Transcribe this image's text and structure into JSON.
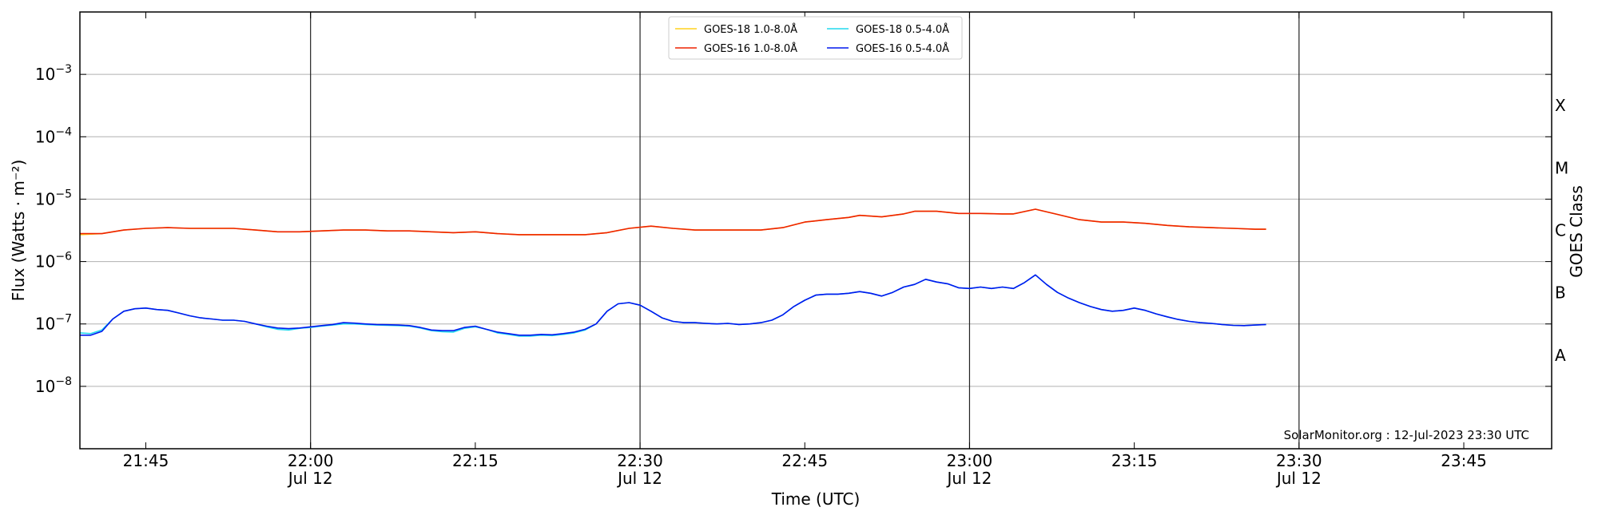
{
  "chart_data": {
    "type": "line",
    "xlabel": "Time (UTC)",
    "ylabel": "Flux (Watts · m⁻²)",
    "y2label": "GOES Class",
    "yscale": "log",
    "xlim": [
      "21:39",
      "23:53"
    ],
    "ylim": [
      1e-09,
      0.01
    ],
    "x_ticks": [
      {
        "time": "21:45",
        "label": "21:45",
        "date": ""
      },
      {
        "time": "22:00",
        "label": "22:00",
        "date": "Jul 12"
      },
      {
        "time": "22:15",
        "label": "22:15",
        "date": ""
      },
      {
        "time": "22:30",
        "label": "22:30",
        "date": "Jul 12"
      },
      {
        "time": "22:45",
        "label": "22:45",
        "date": ""
      },
      {
        "time": "23:00",
        "label": "23:00",
        "date": "Jul 12"
      },
      {
        "time": "23:15",
        "label": "23:15",
        "date": ""
      },
      {
        "time": "23:30",
        "label": "23:30",
        "date": "Jul 12"
      },
      {
        "time": "23:45",
        "label": "23:45",
        "date": ""
      }
    ],
    "y_ticks": [
      {
        "value": 1e-08,
        "base": "10",
        "exp": "−8"
      },
      {
        "value": 1e-07,
        "base": "10",
        "exp": "−7"
      },
      {
        "value": 1e-06,
        "base": "10",
        "exp": "−6"
      },
      {
        "value": 1e-05,
        "base": "10",
        "exp": "−5"
      },
      {
        "value": 0.0001,
        "base": "10",
        "exp": "−4"
      },
      {
        "value": 0.001,
        "base": "10",
        "exp": "−3"
      }
    ],
    "goes_classes": [
      {
        "label": "A",
        "value": 3.16e-08
      },
      {
        "label": "B",
        "value": 3.16e-07
      },
      {
        "label": "C",
        "value": 3.16e-06
      },
      {
        "label": "M",
        "value": 3.16e-05
      },
      {
        "label": "X",
        "value": 0.000316
      }
    ],
    "vertical_lines": [
      "22:00",
      "22:30",
      "23:00",
      "23:30"
    ],
    "grid": "horizontal",
    "legend_placement": "top-center",
    "credit": "SolarMonitor.org : 12-Jul-2023 23:30 UTC",
    "series": [
      {
        "name": "GOES-18 1.0-8.0Å",
        "color": "#ffd21f",
        "x": [
          "21:39",
          "21:41",
          "21:43",
          "21:45",
          "21:47",
          "21:49",
          "21:51",
          "21:53",
          "21:55",
          "21:57",
          "21:59",
          "22:01",
          "22:03",
          "22:05",
          "22:07",
          "22:09",
          "22:11",
          "22:13",
          "22:15",
          "22:17",
          "22:19",
          "22:21",
          "22:23",
          "22:25",
          "22:27",
          "22:29",
          "22:31",
          "22:33",
          "22:35",
          "22:37",
          "22:39",
          "22:41",
          "22:43",
          "22:45",
          "22:47",
          "22:49",
          "22:50",
          "22:52",
          "22:54",
          "22:55",
          "22:57",
          "22:59",
          "23:01",
          "23:03",
          "23:04",
          "23:06",
          "23:08",
          "23:10",
          "23:12",
          "23:14",
          "23:16",
          "23:18",
          "23:20",
          "23:22",
          "23:24",
          "23:26",
          "23:27"
        ],
        "values": [
          2.7e-06,
          2.8e-06,
          3.2e-06,
          3.4e-06,
          3.5e-06,
          3.4e-06,
          3.4e-06,
          3.4e-06,
          3.2e-06,
          3e-06,
          3e-06,
          3.1e-06,
          3.2e-06,
          3.2e-06,
          3.1e-06,
          3.1e-06,
          3e-06,
          2.9e-06,
          3e-06,
          2.8e-06,
          2.7e-06,
          2.7e-06,
          2.7e-06,
          2.7e-06,
          2.9e-06,
          3.4e-06,
          3.7e-06,
          3.4e-06,
          3.2e-06,
          3.2e-06,
          3.2e-06,
          3.2e-06,
          3.5e-06,
          4.3e-06,
          4.7e-06,
          5.1e-06,
          5.5e-06,
          5.2e-06,
          5.8e-06,
          6.4e-06,
          6.4e-06,
          5.9e-06,
          5.9e-06,
          5.8e-06,
          5.8e-06,
          6.9e-06,
          5.7e-06,
          4.7e-06,
          4.3e-06,
          4.3e-06,
          4.1e-06,
          3.8e-06,
          3.6e-06,
          3.5e-06,
          3.4e-06,
          3.3e-06,
          3.3e-06
        ]
      },
      {
        "name": "GOES-16 1.0-8.0Å",
        "color": "#ee2200",
        "x": [
          "21:39",
          "21:41",
          "21:43",
          "21:45",
          "21:47",
          "21:49",
          "21:51",
          "21:53",
          "21:55",
          "21:57",
          "21:59",
          "22:01",
          "22:03",
          "22:05",
          "22:07",
          "22:09",
          "22:11",
          "22:13",
          "22:15",
          "22:17",
          "22:19",
          "22:21",
          "22:23",
          "22:25",
          "22:27",
          "22:29",
          "22:31",
          "22:33",
          "22:35",
          "22:37",
          "22:39",
          "22:41",
          "22:43",
          "22:45",
          "22:47",
          "22:49",
          "22:50",
          "22:52",
          "22:54",
          "22:55",
          "22:57",
          "22:59",
          "23:01",
          "23:03",
          "23:04",
          "23:06",
          "23:08",
          "23:10",
          "23:12",
          "23:14",
          "23:16",
          "23:18",
          "23:20",
          "23:22",
          "23:24",
          "23:26",
          "23:27"
        ],
        "values": [
          2.8e-06,
          2.8e-06,
          3.2e-06,
          3.4e-06,
          3.5e-06,
          3.4e-06,
          3.4e-06,
          3.4e-06,
          3.2e-06,
          3e-06,
          3e-06,
          3.1e-06,
          3.2e-06,
          3.2e-06,
          3.1e-06,
          3.1e-06,
          3e-06,
          2.9e-06,
          3e-06,
          2.8e-06,
          2.7e-06,
          2.7e-06,
          2.7e-06,
          2.7e-06,
          2.9e-06,
          3.4e-06,
          3.7e-06,
          3.4e-06,
          3.2e-06,
          3.2e-06,
          3.2e-06,
          3.2e-06,
          3.5e-06,
          4.3e-06,
          4.7e-06,
          5.1e-06,
          5.5e-06,
          5.2e-06,
          5.8e-06,
          6.4e-06,
          6.4e-06,
          5.9e-06,
          5.9e-06,
          5.8e-06,
          5.8e-06,
          6.9e-06,
          5.7e-06,
          4.7e-06,
          4.3e-06,
          4.3e-06,
          4.1e-06,
          3.8e-06,
          3.6e-06,
          3.5e-06,
          3.4e-06,
          3.3e-06,
          3.3e-06
        ]
      },
      {
        "name": "GOES-18 0.5-4.0Å",
        "color": "#22d8ee",
        "x": [
          "21:39",
          "21:40",
          "21:41",
          "21:42",
          "21:43",
          "21:44",
          "21:45",
          "21:46",
          "21:47",
          "21:48",
          "21:49",
          "21:50",
          "21:51",
          "21:52",
          "21:53",
          "21:54",
          "21:55",
          "21:56",
          "21:57",
          "21:58",
          "21:59",
          "22:00",
          "22:01",
          "22:02",
          "22:03",
          "22:04",
          "22:05",
          "22:06",
          "22:07",
          "22:08",
          "22:09",
          "22:10",
          "22:11",
          "22:12",
          "22:13",
          "22:14",
          "22:15",
          "22:16",
          "22:17",
          "22:18",
          "22:19",
          "22:20",
          "22:21",
          "22:22",
          "22:23",
          "22:24",
          "22:25",
          "22:26",
          "22:27",
          "22:28",
          "22:29",
          "22:30",
          "22:31",
          "22:32",
          "22:33",
          "22:34",
          "22:35",
          "22:36",
          "22:37",
          "22:38",
          "22:39",
          "22:40",
          "22:41",
          "22:42",
          "22:43",
          "22:44",
          "22:45",
          "22:46",
          "22:47",
          "22:48",
          "22:49",
          "22:50",
          "22:51",
          "22:52",
          "22:53",
          "22:54",
          "22:55",
          "22:56",
          "22:57",
          "22:58",
          "22:59",
          "23:00",
          "23:01",
          "23:02",
          "23:03",
          "23:04",
          "23:05",
          "23:06",
          "23:07",
          "23:08",
          "23:09",
          "23:10",
          "23:11",
          "23:12",
          "23:13",
          "23:14",
          "23:15",
          "23:16",
          "23:17",
          "23:18",
          "23:19",
          "23:20",
          "23:21",
          "23:22",
          "23:23",
          "23:24",
          "23:25",
          "23:26",
          "23:27"
        ],
        "values": [
          7.2e-08,
          7e-08,
          8e-08,
          1.2e-07,
          1.6e-07,
          1.75e-07,
          1.8e-07,
          1.7e-07,
          1.65e-07,
          1.5e-07,
          1.35e-07,
          1.25e-07,
          1.2e-07,
          1.15e-07,
          1.15e-07,
          1.1e-07,
          1e-07,
          9e-08,
          8.2e-08,
          8e-08,
          8.5e-08,
          8.8e-08,
          9.2e-08,
          9.6e-08,
          1e-07,
          1e-07,
          9.8e-08,
          9.6e-08,
          9.5e-08,
          9.4e-08,
          9.2e-08,
          8.6e-08,
          7.8e-08,
          7.5e-08,
          7.4e-08,
          8.5e-08,
          9e-08,
          8.2e-08,
          7.2e-08,
          6.8e-08,
          6.4e-08,
          6.4e-08,
          6.6e-08,
          6.5e-08,
          6.8e-08,
          7.2e-08,
          8e-08,
          1e-07,
          1.6e-07,
          2.1e-07,
          2.2e-07,
          2e-07,
          1.6e-07,
          1.25e-07,
          1.1e-07,
          1.05e-07,
          1.05e-07,
          1.02e-07,
          1e-07,
          1.02e-07,
          9.8e-08,
          1e-07,
          1.05e-07,
          1.15e-07,
          1.4e-07,
          1.9e-07,
          2.4e-07,
          2.9e-07,
          3e-07,
          3e-07,
          3.1e-07,
          3.3e-07,
          3.1e-07,
          2.8e-07,
          3.2e-07,
          3.9e-07,
          4.3e-07,
          5.2e-07,
          4.7e-07,
          4.4e-07,
          3.8e-07,
          3.7e-07,
          3.9e-07,
          3.7e-07,
          3.9e-07,
          3.7e-07,
          4.6e-07,
          6.1e-07,
          4.3e-07,
          3.2e-07,
          2.6e-07,
          2.2e-07,
          1.9e-07,
          1.7e-07,
          1.6e-07,
          1.65e-07,
          1.8e-07,
          1.65e-07,
          1.45e-07,
          1.3e-07,
          1.18e-07,
          1.1e-07,
          1.05e-07,
          1.02e-07,
          9.8e-08,
          9.5e-08,
          9.4e-08,
          9.6e-08,
          9.8e-08
        ]
      },
      {
        "name": "GOES-16 0.5-4.0Å",
        "color": "#0018ee",
        "x": [
          "21:39",
          "21:40",
          "21:41",
          "21:42",
          "21:43",
          "21:44",
          "21:45",
          "21:46",
          "21:47",
          "21:48",
          "21:49",
          "21:50",
          "21:51",
          "21:52",
          "21:53",
          "21:54",
          "21:55",
          "21:56",
          "21:57",
          "21:58",
          "21:59",
          "22:00",
          "22:01",
          "22:02",
          "22:03",
          "22:04",
          "22:05",
          "22:06",
          "22:07",
          "22:08",
          "22:09",
          "22:10",
          "22:11",
          "22:12",
          "22:13",
          "22:14",
          "22:15",
          "22:16",
          "22:17",
          "22:18",
          "22:19",
          "22:20",
          "22:21",
          "22:22",
          "22:23",
          "22:24",
          "22:25",
          "22:26",
          "22:27",
          "22:28",
          "22:29",
          "22:30",
          "22:31",
          "22:32",
          "22:33",
          "22:34",
          "22:35",
          "22:36",
          "22:37",
          "22:38",
          "22:39",
          "22:40",
          "22:41",
          "22:42",
          "22:43",
          "22:44",
          "22:45",
          "22:46",
          "22:47",
          "22:48",
          "22:49",
          "22:50",
          "22:51",
          "22:52",
          "22:53",
          "22:54",
          "22:55",
          "22:56",
          "22:57",
          "22:58",
          "22:59",
          "23:00",
          "23:01",
          "23:02",
          "23:03",
          "23:04",
          "23:05",
          "23:06",
          "23:07",
          "23:08",
          "23:09",
          "23:10",
          "23:11",
          "23:12",
          "23:13",
          "23:14",
          "23:15",
          "23:16",
          "23:17",
          "23:18",
          "23:19",
          "23:20",
          "23:21",
          "23:22",
          "23:23",
          "23:24",
          "23:25",
          "23:26",
          "23:27"
        ],
        "values": [
          6.6e-08,
          6.6e-08,
          7.6e-08,
          1.2e-07,
          1.6e-07,
          1.75e-07,
          1.8e-07,
          1.7e-07,
          1.65e-07,
          1.5e-07,
          1.35e-07,
          1.25e-07,
          1.2e-07,
          1.15e-07,
          1.15e-07,
          1.1e-07,
          1e-07,
          9.2e-08,
          8.6e-08,
          8.4e-08,
          8.6e-08,
          9e-08,
          9.4e-08,
          9.8e-08,
          1.05e-07,
          1.03e-07,
          1e-07,
          9.8e-08,
          9.7e-08,
          9.6e-08,
          9.4e-08,
          8.8e-08,
          8e-08,
          7.8e-08,
          7.8e-08,
          8.8e-08,
          9.2e-08,
          8.2e-08,
          7.4e-08,
          7e-08,
          6.6e-08,
          6.6e-08,
          6.8e-08,
          6.7e-08,
          7e-08,
          7.4e-08,
          8.2e-08,
          1e-07,
          1.6e-07,
          2.1e-07,
          2.2e-07,
          2e-07,
          1.6e-07,
          1.25e-07,
          1.1e-07,
          1.05e-07,
          1.05e-07,
          1.02e-07,
          1e-07,
          1.02e-07,
          9.8e-08,
          1e-07,
          1.05e-07,
          1.15e-07,
          1.4e-07,
          1.9e-07,
          2.4e-07,
          2.9e-07,
          3e-07,
          3e-07,
          3.1e-07,
          3.3e-07,
          3.1e-07,
          2.8e-07,
          3.2e-07,
          3.9e-07,
          4.3e-07,
          5.2e-07,
          4.7e-07,
          4.4e-07,
          3.8e-07,
          3.7e-07,
          3.9e-07,
          3.7e-07,
          3.9e-07,
          3.7e-07,
          4.6e-07,
          6.1e-07,
          4.3e-07,
          3.2e-07,
          2.6e-07,
          2.2e-07,
          1.9e-07,
          1.7e-07,
          1.6e-07,
          1.65e-07,
          1.8e-07,
          1.65e-07,
          1.45e-07,
          1.3e-07,
          1.18e-07,
          1.1e-07,
          1.05e-07,
          1.02e-07,
          9.8e-08,
          9.5e-08,
          9.4e-08,
          9.6e-08,
          9.8e-08
        ]
      }
    ]
  }
}
